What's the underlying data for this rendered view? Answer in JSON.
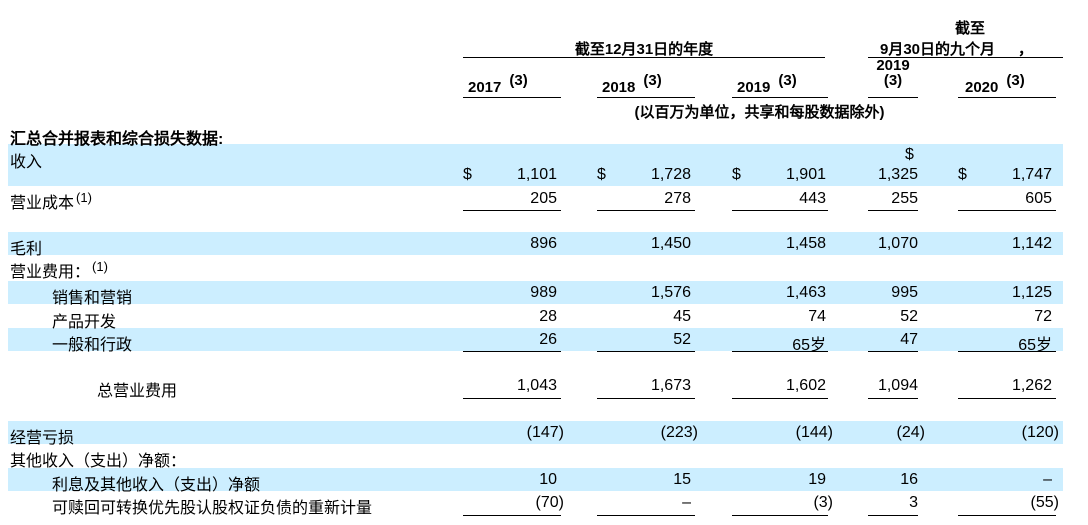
{
  "header": {
    "group_fy": "截至12月31日的年度",
    "group_nine_line1": "截至",
    "group_nine_line2": "9月30日的九个月",
    "group_nine_comma": "，",
    "note_3": "(3)",
    "years": [
      "2017",
      "2018",
      "2019",
      "2019",
      "2020"
    ],
    "units_note": "(以百万为单位，共享和每股数据除外)"
  },
  "section_title": "汇总合并报表和综合损失数据:",
  "currency_symbol": "$",
  "rows": {
    "revenue": {
      "label": "收入",
      "values": [
        "1,101",
        "1,728",
        "1,901",
        "1,325",
        "1,747"
      ]
    },
    "cost": {
      "label": "营业成本",
      "note": "(1)",
      "values": [
        "205",
        "278",
        "443",
        "255",
        "605"
      ]
    },
    "gross_profit": {
      "label": "毛利",
      "values": [
        "896",
        "1,450",
        "1,458",
        "1,070",
        "1,142"
      ]
    },
    "opex_header": {
      "label": "营业费用：",
      "note": "(1)"
    },
    "sales": {
      "label": "销售和营销",
      "values": [
        "989",
        "1,576",
        "1,463",
        "995",
        "1,125"
      ]
    },
    "product": {
      "label": "产品开发",
      "values": [
        "28",
        "45",
        "74",
        "52",
        "72"
      ]
    },
    "ga": {
      "label": "一般和行政",
      "values": [
        "26",
        "52",
        "65岁",
        "47",
        "65岁"
      ]
    },
    "total_opex": {
      "label": "总营业费用",
      "values": [
        "1,043",
        "1,673",
        "1,602",
        "1,094",
        "1,262"
      ]
    },
    "op_loss": {
      "label": "经营亏损",
      "values": [
        "(147)",
        "(223)",
        "(144)",
        "(24)",
        "(120)"
      ]
    },
    "other_header": {
      "label": "其他收入（支出）净额："
    },
    "interest": {
      "label": "利息及其他收入（支出）净额",
      "values": [
        "10",
        "15",
        "19",
        "16",
        "–"
      ]
    },
    "remeasure": {
      "label": "可赎回可转换优先股认股权证负债的重新计量",
      "values": [
        "(70)",
        "–",
        "(3)",
        "3",
        "(55)"
      ]
    }
  }
}
